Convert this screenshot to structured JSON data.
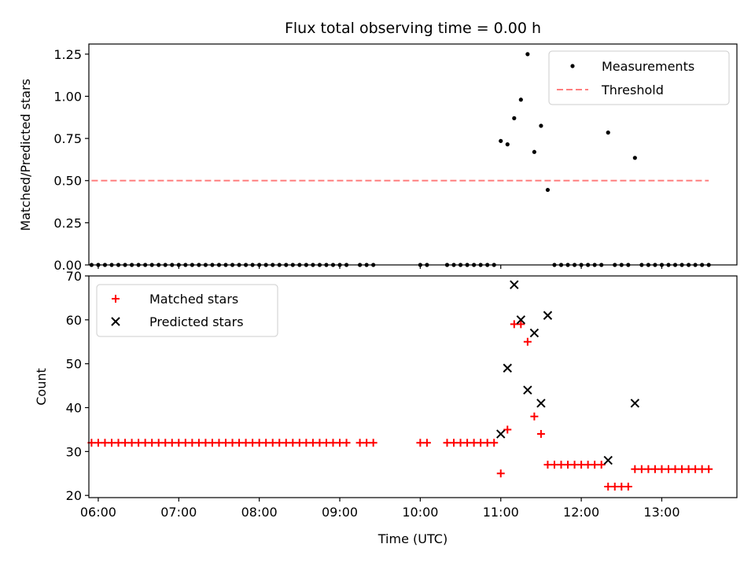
{
  "chart_data": [
    {
      "type": "scatter",
      "title": "Flux total observing time = 0.00 h",
      "xlabel": "",
      "ylabel": "Matched/Predicted stars",
      "xlim": [
        "05:53",
        "13:56"
      ],
      "ylim": [
        0,
        1.31
      ],
      "yticks": [
        0.0,
        0.25,
        0.5,
        0.75,
        1.0,
        1.25
      ],
      "ytick_labels": [
        "0.00",
        "0.25",
        "0.50",
        "0.75",
        "1.00",
        "1.25"
      ],
      "xticks": [
        "06:00",
        "07:00",
        "08:00",
        "09:00",
        "10:00",
        "11:00",
        "12:00",
        "13:00"
      ],
      "xtick_labels_visible": false,
      "legend_position": "top-right",
      "grid": false,
      "series": [
        {
          "name": "Measurements",
          "kind": "points",
          "color": "#000000",
          "points": [
            [
              "05:55",
              0
            ],
            [
              "06:00",
              0
            ],
            [
              "06:05",
              0
            ],
            [
              "06:10",
              0
            ],
            [
              "06:15",
              0
            ],
            [
              "06:20",
              0
            ],
            [
              "06:25",
              0
            ],
            [
              "06:30",
              0
            ],
            [
              "06:35",
              0
            ],
            [
              "06:40",
              0
            ],
            [
              "06:45",
              0
            ],
            [
              "06:50",
              0
            ],
            [
              "06:55",
              0
            ],
            [
              "07:00",
              0
            ],
            [
              "07:05",
              0
            ],
            [
              "07:10",
              0
            ],
            [
              "07:15",
              0
            ],
            [
              "07:20",
              0
            ],
            [
              "07:25",
              0
            ],
            [
              "07:30",
              0
            ],
            [
              "07:35",
              0
            ],
            [
              "07:40",
              0
            ],
            [
              "07:45",
              0
            ],
            [
              "07:50",
              0
            ],
            [
              "07:55",
              0
            ],
            [
              "08:00",
              0
            ],
            [
              "08:05",
              0
            ],
            [
              "08:10",
              0
            ],
            [
              "08:15",
              0
            ],
            [
              "08:20",
              0
            ],
            [
              "08:25",
              0
            ],
            [
              "08:30",
              0
            ],
            [
              "08:35",
              0
            ],
            [
              "08:40",
              0
            ],
            [
              "08:45",
              0
            ],
            [
              "08:50",
              0
            ],
            [
              "08:55",
              0
            ],
            [
              "09:00",
              0
            ],
            [
              "09:05",
              0
            ],
            [
              "09:15",
              0
            ],
            [
              "09:20",
              0
            ],
            [
              "09:25",
              0
            ],
            [
              "10:00",
              0
            ],
            [
              "10:05",
              0
            ],
            [
              "10:20",
              0
            ],
            [
              "10:25",
              0
            ],
            [
              "10:30",
              0
            ],
            [
              "10:35",
              0
            ],
            [
              "10:40",
              0
            ],
            [
              "10:45",
              0
            ],
            [
              "10:50",
              0
            ],
            [
              "10:55",
              0
            ],
            [
              "11:00",
              0.735
            ],
            [
              "11:05",
              0.715
            ],
            [
              "11:10",
              0.87
            ],
            [
              "11:15",
              0.98
            ],
            [
              "11:20",
              1.25
            ],
            [
              "11:25",
              0.67
            ],
            [
              "11:30",
              0.825
            ],
            [
              "11:35",
              0.445
            ],
            [
              "11:40",
              0
            ],
            [
              "11:45",
              0
            ],
            [
              "11:50",
              0
            ],
            [
              "11:55",
              0
            ],
            [
              "12:00",
              0
            ],
            [
              "12:05",
              0
            ],
            [
              "12:10",
              0
            ],
            [
              "12:15",
              0
            ],
            [
              "12:20",
              0.785
            ],
            [
              "12:25",
              0
            ],
            [
              "12:30",
              0
            ],
            [
              "12:35",
              0
            ],
            [
              "12:40",
              0.635
            ],
            [
              "12:45",
              0
            ],
            [
              "12:50",
              0
            ],
            [
              "12:55",
              0
            ],
            [
              "13:00",
              0
            ],
            [
              "13:05",
              0
            ],
            [
              "13:10",
              0
            ],
            [
              "13:15",
              0
            ],
            [
              "13:20",
              0
            ],
            [
              "13:25",
              0
            ],
            [
              "13:30",
              0
            ],
            [
              "13:35",
              0
            ]
          ]
        },
        {
          "name": "Threshold",
          "kind": "dashed-line",
          "color": "#ff7f7f",
          "points": [
            [
              "05:55",
              0.5
            ],
            [
              "13:35",
              0.5
            ]
          ]
        }
      ]
    },
    {
      "type": "scatter",
      "title": "",
      "xlabel": "Time (UTC)",
      "ylabel": "Count",
      "xlim": [
        "05:53",
        "13:56"
      ],
      "ylim": [
        19.5,
        70
      ],
      "yticks": [
        20,
        30,
        40,
        50,
        60,
        70
      ],
      "ytick_labels": [
        "20",
        "30",
        "40",
        "50",
        "60",
        "70"
      ],
      "xticks": [
        "06:00",
        "07:00",
        "08:00",
        "09:00",
        "10:00",
        "11:00",
        "12:00",
        "13:00"
      ],
      "xtick_labels": [
        "06:00",
        "07:00",
        "08:00",
        "09:00",
        "10:00",
        "11:00",
        "12:00",
        "13:00"
      ],
      "legend_position": "top-left",
      "grid": false,
      "series": [
        {
          "name": "Matched stars",
          "kind": "plus",
          "color": "#ff0000",
          "points": [
            [
              "05:55",
              32
            ],
            [
              "06:00",
              32
            ],
            [
              "06:05",
              32
            ],
            [
              "06:10",
              32
            ],
            [
              "06:15",
              32
            ],
            [
              "06:20",
              32
            ],
            [
              "06:25",
              32
            ],
            [
              "06:30",
              32
            ],
            [
              "06:35",
              32
            ],
            [
              "06:40",
              32
            ],
            [
              "06:45",
              32
            ],
            [
              "06:50",
              32
            ],
            [
              "06:55",
              32
            ],
            [
              "07:00",
              32
            ],
            [
              "07:05",
              32
            ],
            [
              "07:10",
              32
            ],
            [
              "07:15",
              32
            ],
            [
              "07:20",
              32
            ],
            [
              "07:25",
              32
            ],
            [
              "07:30",
              32
            ],
            [
              "07:35",
              32
            ],
            [
              "07:40",
              32
            ],
            [
              "07:45",
              32
            ],
            [
              "07:50",
              32
            ],
            [
              "07:55",
              32
            ],
            [
              "08:00",
              32
            ],
            [
              "08:05",
              32
            ],
            [
              "08:10",
              32
            ],
            [
              "08:15",
              32
            ],
            [
              "08:20",
              32
            ],
            [
              "08:25",
              32
            ],
            [
              "08:30",
              32
            ],
            [
              "08:35",
              32
            ],
            [
              "08:40",
              32
            ],
            [
              "08:45",
              32
            ],
            [
              "08:50",
              32
            ],
            [
              "08:55",
              32
            ],
            [
              "09:00",
              32
            ],
            [
              "09:05",
              32
            ],
            [
              "09:15",
              32
            ],
            [
              "09:20",
              32
            ],
            [
              "09:25",
              32
            ],
            [
              "10:00",
              32
            ],
            [
              "10:05",
              32
            ],
            [
              "10:20",
              32
            ],
            [
              "10:25",
              32
            ],
            [
              "10:30",
              32
            ],
            [
              "10:35",
              32
            ],
            [
              "10:40",
              32
            ],
            [
              "10:45",
              32
            ],
            [
              "10:50",
              32
            ],
            [
              "10:55",
              32
            ],
            [
              "11:00",
              25
            ],
            [
              "11:05",
              35
            ],
            [
              "11:10",
              59
            ],
            [
              "11:15",
              59
            ],
            [
              "11:20",
              55
            ],
            [
              "11:25",
              38
            ],
            [
              "11:30",
              34
            ],
            [
              "11:35",
              27
            ],
            [
              "11:40",
              27
            ],
            [
              "11:45",
              27
            ],
            [
              "11:50",
              27
            ],
            [
              "11:55",
              27
            ],
            [
              "12:00",
              27
            ],
            [
              "12:05",
              27
            ],
            [
              "12:10",
              27
            ],
            [
              "12:15",
              27
            ],
            [
              "12:20",
              22
            ],
            [
              "12:25",
              22
            ],
            [
              "12:30",
              22
            ],
            [
              "12:35",
              22
            ],
            [
              "12:40",
              26
            ],
            [
              "12:45",
              26
            ],
            [
              "12:50",
              26
            ],
            [
              "12:55",
              26
            ],
            [
              "13:00",
              26
            ],
            [
              "13:05",
              26
            ],
            [
              "13:10",
              26
            ],
            [
              "13:15",
              26
            ],
            [
              "13:20",
              26
            ],
            [
              "13:25",
              26
            ],
            [
              "13:30",
              26
            ],
            [
              "13:35",
              26
            ]
          ]
        },
        {
          "name": "Predicted stars",
          "kind": "x",
          "color": "#000000",
          "points": [
            [
              "11:00",
              34
            ],
            [
              "11:05",
              49
            ],
            [
              "11:10",
              68
            ],
            [
              "11:15",
              60
            ],
            [
              "11:20",
              44
            ],
            [
              "11:25",
              57
            ],
            [
              "11:30",
              41
            ],
            [
              "11:35",
              61
            ],
            [
              "12:20",
              28
            ],
            [
              "12:40",
              41
            ]
          ]
        }
      ]
    }
  ]
}
